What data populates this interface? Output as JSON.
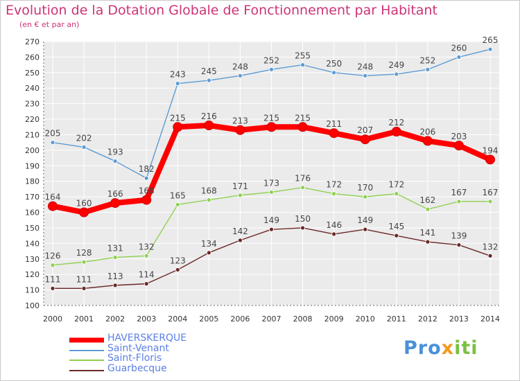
{
  "chart_data": {
    "type": "line",
    "title": "Evolution de la Dotation Globale de Fonctionnement par Habitant",
    "subtitle": "(en € et par an)",
    "xlabel": "",
    "ylabel": "",
    "categories": [
      "2000",
      "2001",
      "2002",
      "2003",
      "2004",
      "2005",
      "2006",
      "2007",
      "2008",
      "2009",
      "2010",
      "2011",
      "2012",
      "2013",
      "2014"
    ],
    "ylim": [
      100,
      270
    ],
    "ytick_step": 10,
    "grid": true,
    "legend_position": "bottom-left",
    "series": [
      {
        "name": "HAVERSKERQUE",
        "color": "#ff0000",
        "style": "bold",
        "values": [
          164,
          160,
          166,
          168,
          215,
          216,
          213,
          215,
          215,
          211,
          207,
          212,
          206,
          203,
          194
        ],
        "labels": [
          "164",
          "160",
          "166",
          "168",
          "215",
          "216",
          "213",
          "215",
          "215",
          "211",
          "207",
          "212",
          "206",
          "203",
          "194"
        ]
      },
      {
        "name": "Saint-Venant",
        "color": "#5b9bd5",
        "style": "thin",
        "values": [
          205,
          202,
          193,
          182,
          243,
          245,
          248,
          252,
          255,
          250,
          248,
          249,
          252,
          260,
          265
        ],
        "labels": [
          "205",
          "202",
          "193",
          "182",
          "243",
          "245",
          "248",
          "252",
          "255",
          "250",
          "248",
          "249",
          "252",
          "260",
          "265"
        ]
      },
      {
        "name": "Saint-Floris",
        "color": "#8fd14f",
        "style": "thin",
        "values": [
          126,
          128,
          131,
          132,
          165,
          168,
          171,
          173,
          176,
          172,
          170,
          172,
          162,
          167,
          167
        ],
        "labels": [
          "126",
          "128",
          "131",
          "132",
          "165",
          "168",
          "171",
          "173",
          "176",
          "172",
          "170",
          "172",
          "162",
          "167",
          "167"
        ]
      },
      {
        "name": "Guarbecque",
        "color": "#6b2626",
        "style": "thin",
        "values": [
          111,
          111,
          113,
          114,
          123,
          134,
          142,
          149,
          150,
          146,
          149,
          145,
          141,
          139,
          132
        ],
        "labels": [
          "111",
          "111",
          "113",
          "114",
          "123",
          "134",
          "142",
          "149",
          "150",
          "146",
          "149",
          "145",
          "141",
          "139",
          "132"
        ]
      }
    ]
  },
  "brand": {
    "part1": "Pro",
    "part2": "x",
    "part3": "iti"
  }
}
